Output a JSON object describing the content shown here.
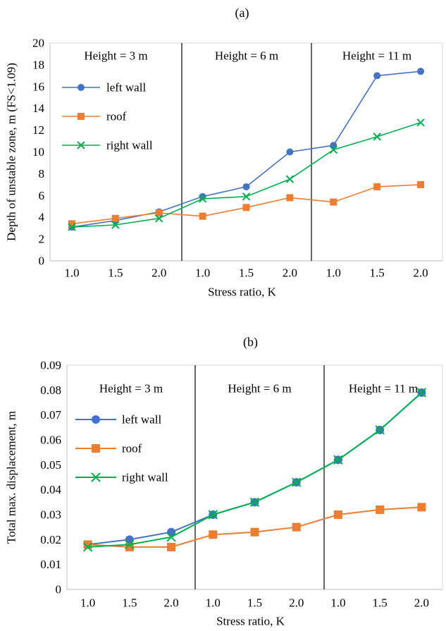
{
  "chart_data": [
    {
      "type": "line",
      "panel_label": "(a)",
      "title": "",
      "xlabel": "Stress ratio, K",
      "ylabel": "Depth of unstable zone, m (FS<1.09)",
      "ylim": [
        0,
        20
      ],
      "yticks": [
        "0",
        "2",
        "4",
        "6",
        "8",
        "10",
        "12",
        "14",
        "16",
        "18",
        "20"
      ],
      "categories": [
        "1.0",
        "1.5",
        "2.0",
        "1.0",
        "1.5",
        "2.0",
        "1.0",
        "1.5",
        "2.0"
      ],
      "group_labels": [
        "Height = 3 m",
        "Height = 6 m",
        "Height = 11 m"
      ],
      "grid": false,
      "legend_position": "upper-left",
      "series": [
        {
          "name": "left wall",
          "color": "#4472C4",
          "marker": "circle",
          "values": [
            3.1,
            3.7,
            4.5,
            5.9,
            6.8,
            10.0,
            10.6,
            17.0,
            17.4
          ]
        },
        {
          "name": "roof",
          "color": "#ED7D31",
          "marker": "square",
          "values": [
            3.4,
            3.9,
            4.4,
            4.1,
            4.9,
            5.8,
            5.4,
            6.8,
            7.0
          ]
        },
        {
          "name": "right wall",
          "color": "#00B050",
          "marker": "x",
          "values": [
            3.1,
            3.3,
            3.9,
            5.7,
            5.9,
            7.5,
            10.2,
            11.4,
            12.7
          ]
        }
      ]
    },
    {
      "type": "line",
      "panel_label": "(b)",
      "title": "",
      "xlabel": "Stress ratio, K",
      "ylabel": "Total max. displacement, m",
      "ylim": [
        0,
        0.09
      ],
      "yticks": [
        "0",
        "0.01",
        "0.02",
        "0.03",
        "0.04",
        "0.05",
        "0.06",
        "0.07",
        "0.08",
        "0.09"
      ],
      "categories": [
        "1.0",
        "1.5",
        "2.0",
        "1.0",
        "1.5",
        "2.0",
        "1.0",
        "1.5",
        "2.0"
      ],
      "group_labels": [
        "Height = 3 m",
        "Height = 6 m",
        "Height = 11 m"
      ],
      "grid": false,
      "legend_position": "left",
      "series": [
        {
          "name": "left wall",
          "color": "#4472C4",
          "marker": "circle",
          "values": [
            0.018,
            0.02,
            0.023,
            0.03,
            0.035,
            0.043,
            0.052,
            0.064,
            0.079
          ]
        },
        {
          "name": "roof",
          "color": "#ED7D31",
          "marker": "square",
          "values": [
            0.018,
            0.017,
            0.017,
            0.022,
            0.023,
            0.025,
            0.03,
            0.032,
            0.033
          ]
        },
        {
          "name": "right wall",
          "color": "#00B050",
          "marker": "x",
          "values": [
            0.017,
            0.018,
            0.021,
            0.03,
            0.035,
            0.043,
            0.052,
            0.064,
            0.079
          ]
        }
      ]
    }
  ]
}
